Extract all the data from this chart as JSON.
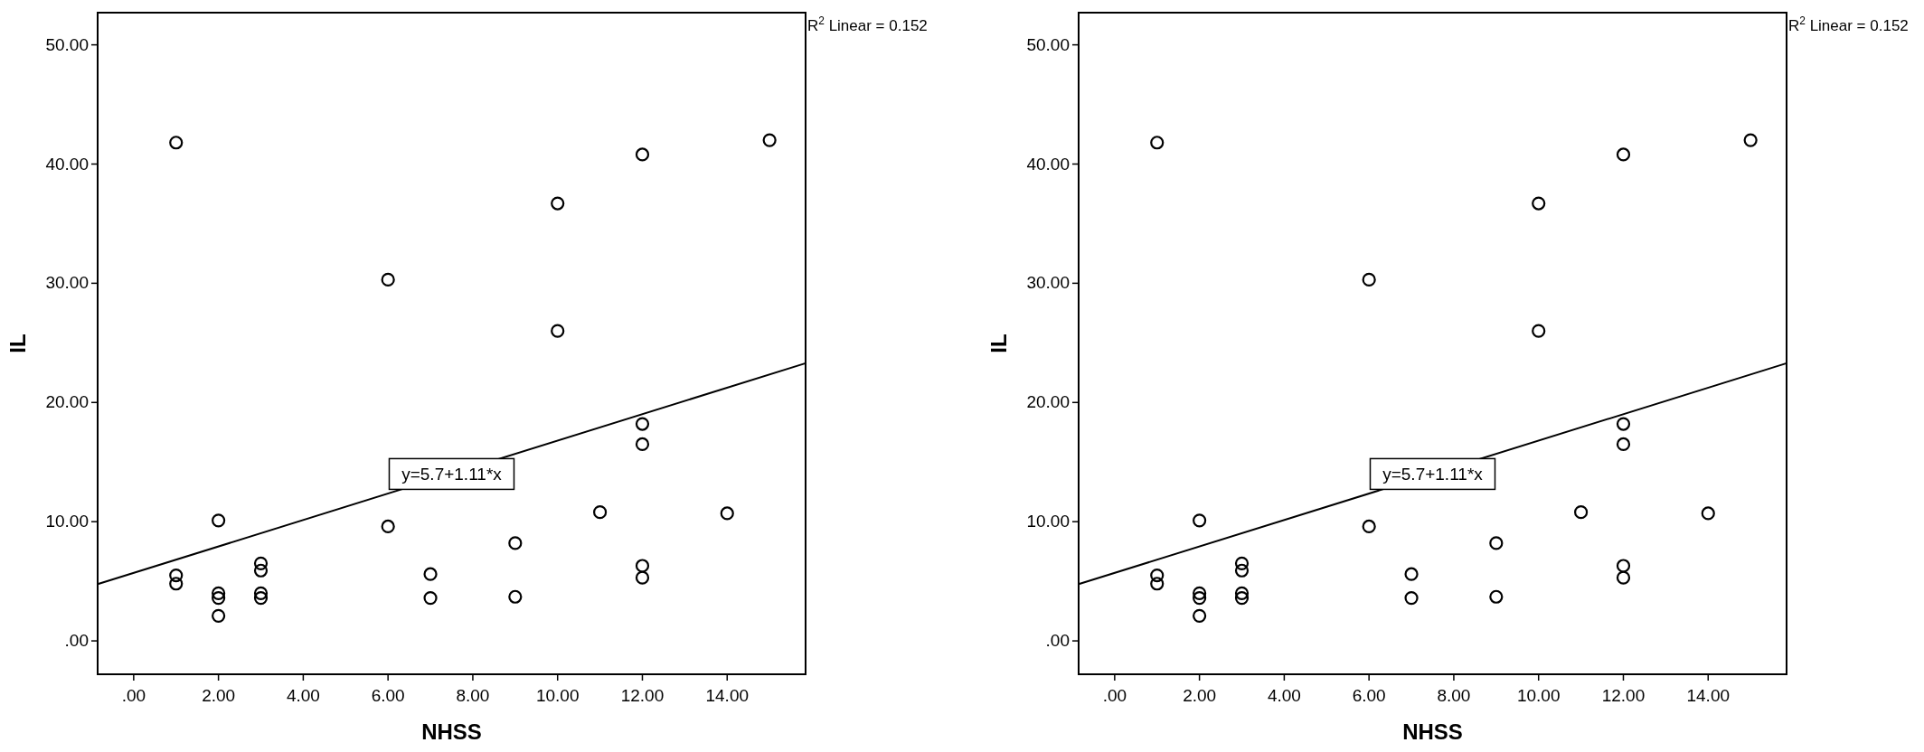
{
  "chart_data": [
    {
      "type": "scatter",
      "xlabel": "NHSS",
      "ylabel": "IL",
      "grid": false,
      "xlim": [
        -0.85,
        15.85
      ],
      "ylim": [
        -2.8,
        52.7
      ],
      "xticks": [
        {
          "value": 0,
          "label": ".00"
        },
        {
          "value": 2,
          "label": "2.00"
        },
        {
          "value": 4,
          "label": "4.00"
        },
        {
          "value": 6,
          "label": "6.00"
        },
        {
          "value": 8,
          "label": "8.00"
        },
        {
          "value": 10,
          "label": "10.00"
        },
        {
          "value": 12,
          "label": "12.00"
        },
        {
          "value": 14,
          "label": "14.00"
        }
      ],
      "yticks": [
        {
          "value": 0,
          "label": ".00"
        },
        {
          "value": 10,
          "label": "10.00"
        },
        {
          "value": 20,
          "label": "20.00"
        },
        {
          "value": 30,
          "label": "30.00"
        },
        {
          "value": 40,
          "label": "40.00"
        },
        {
          "value": 50,
          "label": "50.00"
        }
      ],
      "series": [
        {
          "marker": "circle",
          "color": "#000000",
          "x": [
            1,
            1,
            1,
            2,
            2,
            2,
            2,
            3,
            3,
            3,
            3,
            6,
            6,
            7,
            7,
            9,
            9,
            10,
            10,
            11,
            12,
            12,
            12,
            12,
            12,
            14,
            15
          ],
          "values": [
            41.8,
            5.5,
            4.8,
            10.1,
            4.0,
            3.6,
            2.1,
            6.5,
            5.9,
            4.0,
            3.6,
            30.3,
            9.6,
            5.6,
            3.6,
            8.2,
            3.7,
            36.7,
            26.0,
            10.8,
            40.8,
            18.2,
            16.5,
            6.3,
            5.3,
            10.7,
            42.0
          ]
        },
        {
          "type": "line",
          "color": "#000000",
          "x": [
            -0.85,
            15.85
          ],
          "values": [
            4.76,
            23.29
          ]
        }
      ],
      "annotations": [
        {
          "text": "y=5.7+1.11*x",
          "x": 7.5,
          "y": 14
        },
        "R$^{2}$ Linear = 0.152"
      ]
    },
    {
      "type": "scatter",
      "xlabel": "NHSS",
      "ylabel": "IL",
      "grid": false,
      "xlim": [
        -0.85,
        15.85
      ],
      "ylim": [
        -2.8,
        52.7
      ],
      "xticks": [
        {
          "value": 0,
          "label": ".00"
        },
        {
          "value": 2,
          "label": "2.00"
        },
        {
          "value": 4,
          "label": "4.00"
        },
        {
          "value": 6,
          "label": "6.00"
        },
        {
          "value": 8,
          "label": "8.00"
        },
        {
          "value": 10,
          "label": "10.00"
        },
        {
          "value": 12,
          "label": "12.00"
        },
        {
          "value": 14,
          "label": "14.00"
        }
      ],
      "yticks": [
        {
          "value": 0,
          "label": ".00"
        },
        {
          "value": 10,
          "label": "10.00"
        },
        {
          "value": 20,
          "label": "20.00"
        },
        {
          "value": 30,
          "label": "30.00"
        },
        {
          "value": 40,
          "label": "40.00"
        },
        {
          "value": 50,
          "label": "50.00"
        }
      ],
      "series": [
        {
          "marker": "circle",
          "color": "#000000",
          "x": [
            1,
            1,
            1,
            2,
            2,
            2,
            2,
            3,
            3,
            3,
            3,
            6,
            6,
            7,
            7,
            9,
            9,
            10,
            10,
            11,
            12,
            12,
            12,
            12,
            12,
            14,
            15
          ],
          "values": [
            41.8,
            5.5,
            4.8,
            10.1,
            4.0,
            3.6,
            2.1,
            6.5,
            5.9,
            4.0,
            3.6,
            30.3,
            9.6,
            5.6,
            3.6,
            8.2,
            3.7,
            36.7,
            26.0,
            10.8,
            40.8,
            18.2,
            16.5,
            6.3,
            5.3,
            10.7,
            42.0
          ]
        },
        {
          "type": "line",
          "color": "#000000",
          "x": [
            -0.85,
            15.85
          ],
          "values": [
            4.76,
            23.29
          ]
        }
      ],
      "annotations": [
        {
          "text": "y=5.7+1.11*x",
          "x": 7.5,
          "y": 14
        },
        "R$^{2}$ Linear = 0.152"
      ]
    }
  ]
}
